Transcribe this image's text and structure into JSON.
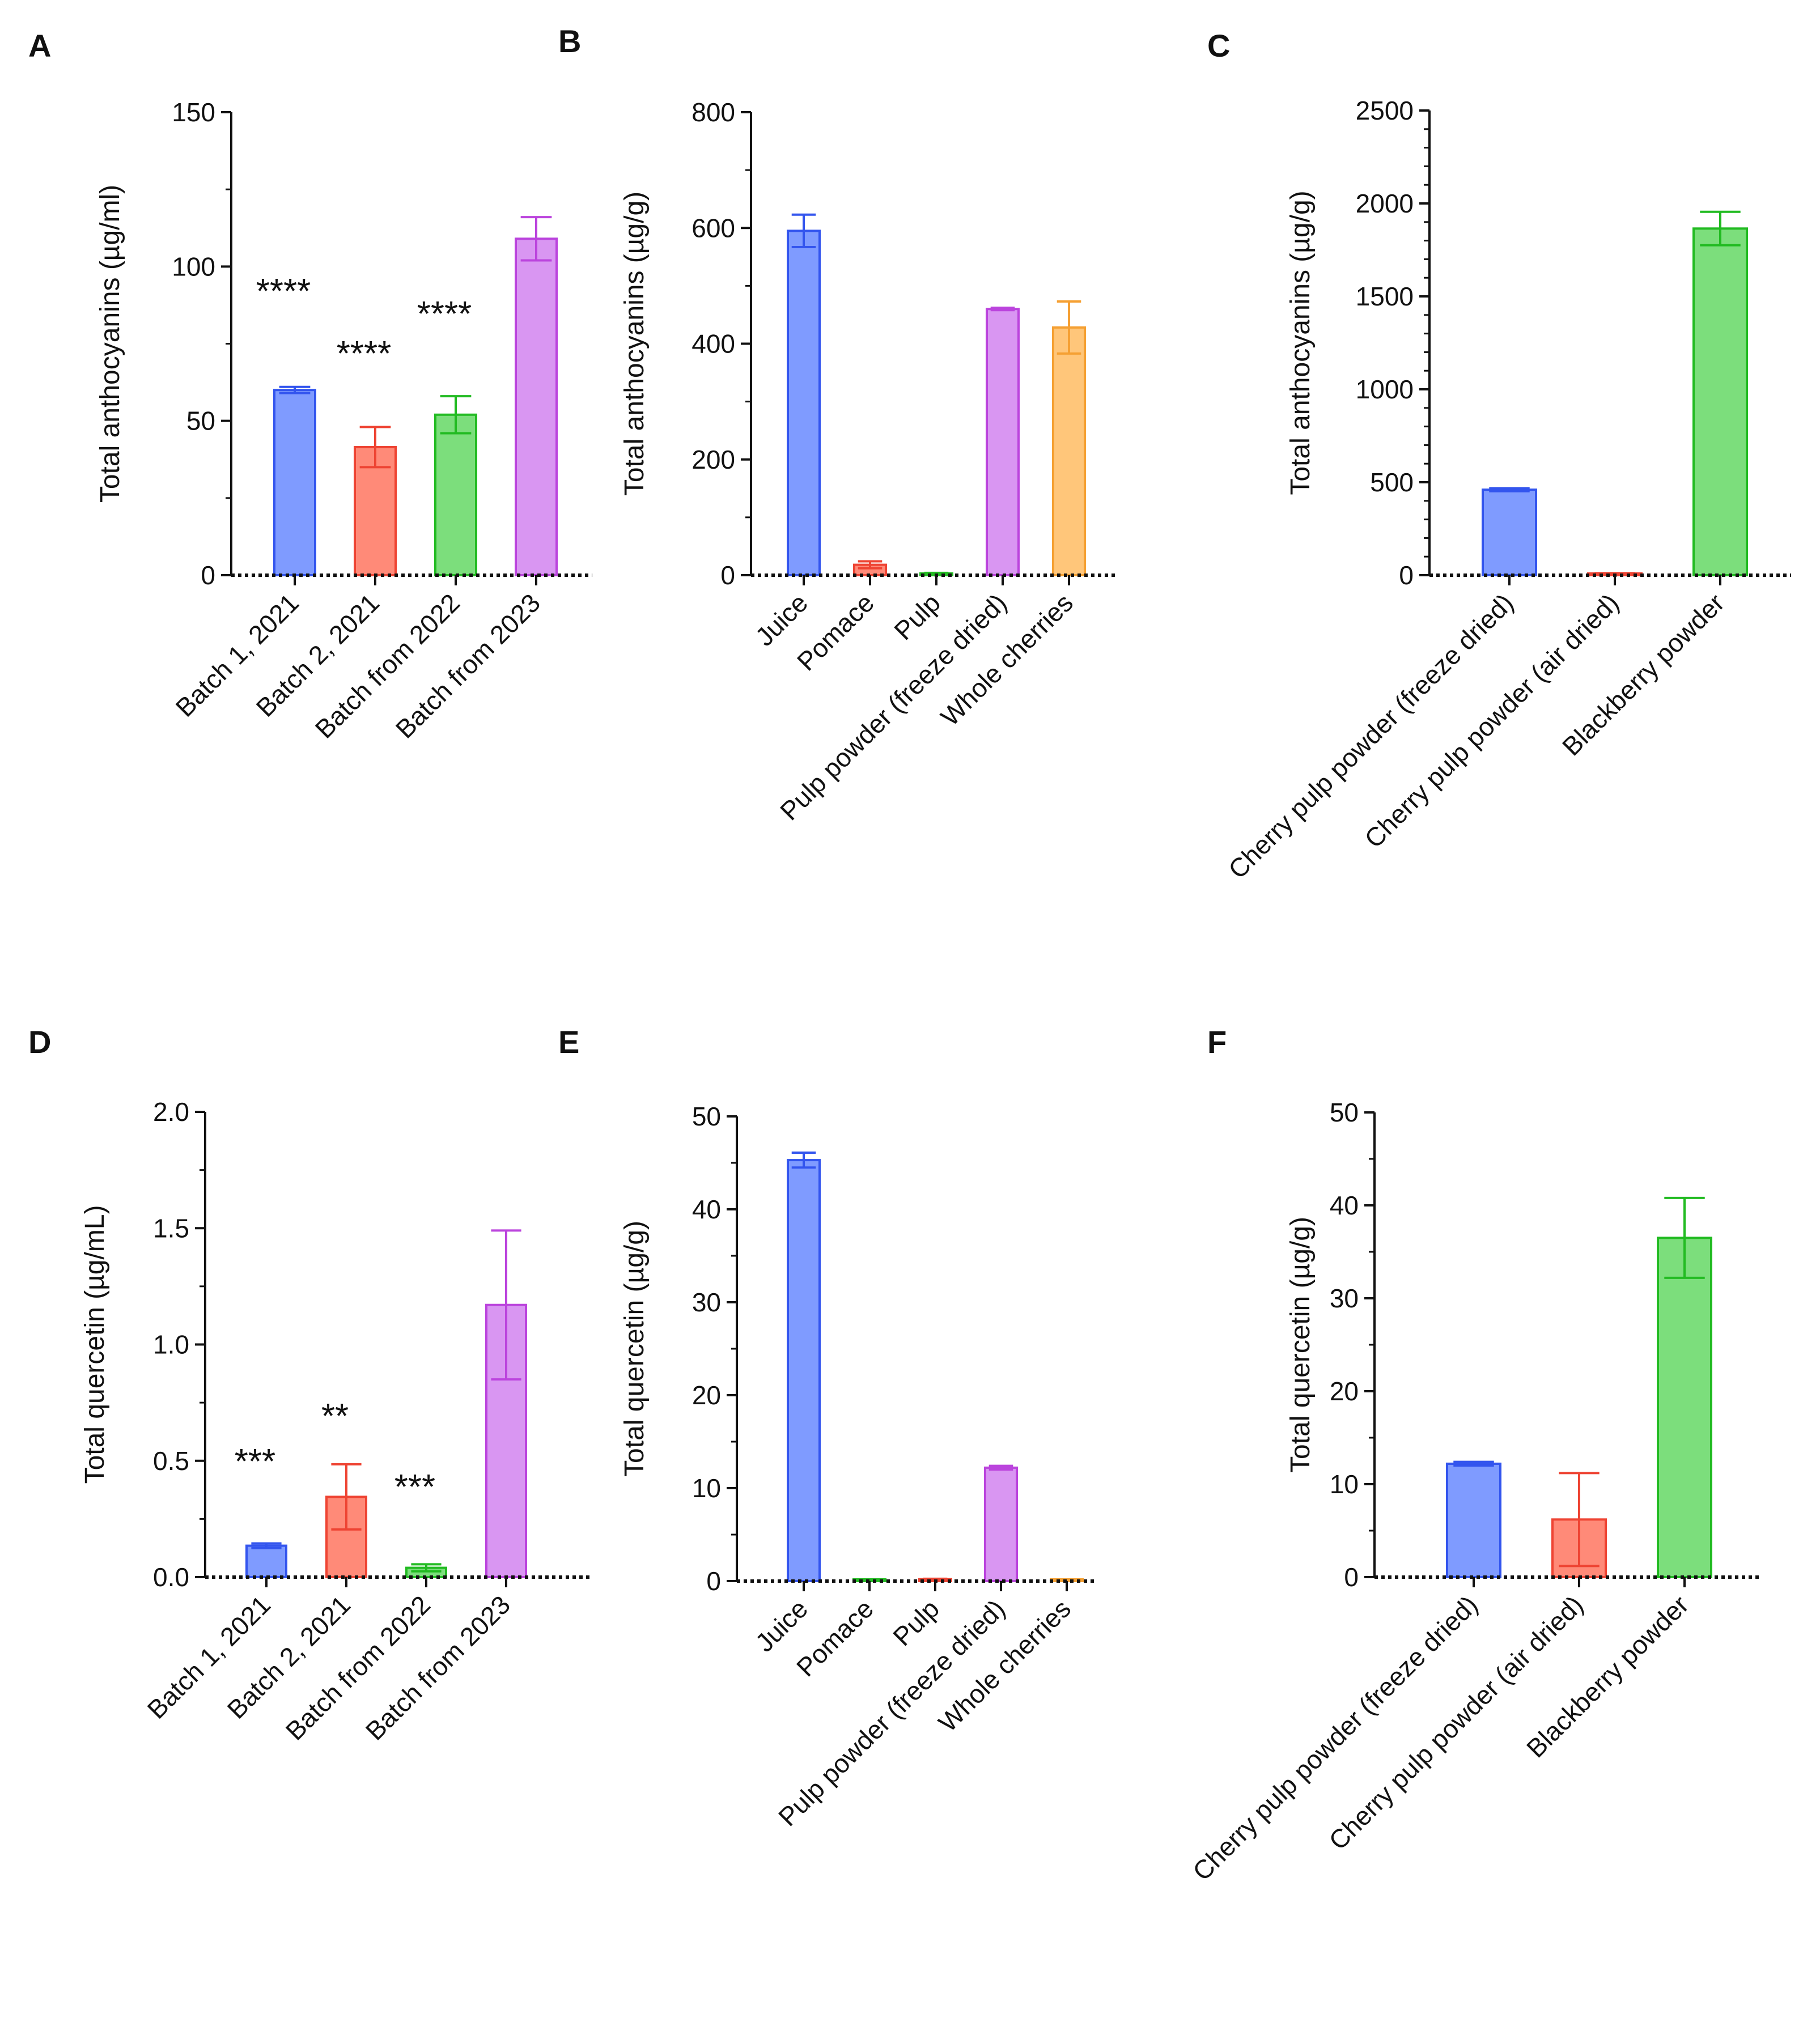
{
  "chart_data": [
    {
      "panel": "A",
      "type": "bar",
      "ylabel": "Total anthocyanins (µg/ml)",
      "ylim": [
        0,
        150
      ],
      "ytick_values": [
        0,
        50,
        100,
        150
      ],
      "ytick_labels": [
        "0",
        "50",
        "100",
        "150"
      ],
      "categories": [
        "Batch 1, 2021",
        "Batch 2, 2021",
        "Batch from 2022",
        "Batch from 2023"
      ],
      "values": [
        60,
        41.5,
        52,
        109
      ],
      "errors": [
        1,
        6.5,
        6,
        7
      ],
      "colors": [
        "#3355ee",
        "#ee4433",
        "#22bb22",
        "#bb44dd"
      ],
      "fills": [
        "#7f9bff",
        "#ff8a78",
        "#7cde7c",
        "#d996f2"
      ],
      "significance": [
        "****",
        "****",
        "****",
        ""
      ]
    },
    {
      "panel": "B",
      "type": "bar",
      "ylabel": "Total anthocyanins (µg/g)",
      "ylim": [
        0,
        800
      ],
      "ytick_values": [
        0,
        200,
        400,
        600,
        800
      ],
      "ytick_labels": [
        "0",
        "200",
        "400",
        "600",
        "800"
      ],
      "categories": [
        "Juice",
        "Pomace",
        "Pulp",
        "Pulp powder (freeze dried)",
        "Whole cherries"
      ],
      "values": [
        595,
        18,
        3,
        460,
        428
      ],
      "errors": [
        28,
        6,
        1,
        2,
        45
      ],
      "colors": [
        "#3355ee",
        "#ee4433",
        "#22bb22",
        "#bb44dd",
        "#f5a033"
      ],
      "fills": [
        "#7f9bff",
        "#ff8a78",
        "#7cde7c",
        "#d996f2",
        "#ffc67a"
      ],
      "significance": [
        "",
        "",
        "",
        "",
        ""
      ]
    },
    {
      "panel": "C",
      "type": "bar",
      "ylabel": "Total anthocyanins (µg/g)",
      "ylim": [
        0,
        2500
      ],
      "ytick_values": [
        0,
        500,
        1000,
        1500,
        2000,
        2500
      ],
      "ytick_labels": [
        "0",
        "500",
        "1000",
        "1500",
        "2000",
        "2500"
      ],
      "categories": [
        "Cherry pulp powder (freeze dried)",
        "Cherry pulp powder (air dried)",
        "Blackberry powder"
      ],
      "values": [
        460,
        8,
        1865
      ],
      "errors": [
        8,
        3,
        90
      ],
      "colors": [
        "#3355ee",
        "#ee4433",
        "#22bb22"
      ],
      "fills": [
        "#7f9bff",
        "#ff8a78",
        "#7cde7c"
      ],
      "significance": [
        "",
        "",
        ""
      ]
    },
    {
      "panel": "D",
      "type": "bar",
      "ylabel": "Total quercetin (µg/mL)",
      "ylim": [
        0,
        2
      ],
      "ytick_values": [
        0,
        0.5,
        1,
        1.5,
        2
      ],
      "ytick_labels": [
        "0.0",
        "0.5",
        "1.0",
        "1.5",
        "2.0"
      ],
      "categories": [
        "Batch 1, 2021",
        "Batch 2, 2021",
        "Batch from 2022",
        "Batch from 2023"
      ],
      "values": [
        0.135,
        0.345,
        0.04,
        1.17
      ],
      "errors": [
        0.01,
        0.14,
        0.015,
        0.32
      ],
      "colors": [
        "#3355ee",
        "#ee4433",
        "#22bb22",
        "#bb44dd"
      ],
      "fills": [
        "#7f9bff",
        "#ff8a78",
        "#7cde7c",
        "#d996f2"
      ],
      "significance": [
        "***",
        "**",
        "***",
        ""
      ]
    },
    {
      "panel": "E",
      "type": "bar",
      "ylabel": "Total quercetin (µg/g)",
      "ylim": [
        0,
        50
      ],
      "ytick_values": [
        0,
        10,
        20,
        30,
        40,
        50
      ],
      "ytick_labels": [
        "0",
        "10",
        "20",
        "30",
        "40",
        "50"
      ],
      "categories": [
        "Juice",
        "Pomace",
        "Pulp",
        "Pulp powder (freeze dried)",
        "Whole cherries"
      ],
      "values": [
        45.3,
        0.05,
        0.2,
        12.2,
        0.1
      ],
      "errors": [
        0.8,
        0.02,
        0.05,
        0.2,
        0.03
      ],
      "colors": [
        "#3355ee",
        "#22bb22",
        "#ee4433",
        "#bb44dd",
        "#f5a033"
      ],
      "fills": [
        "#7f9bff",
        "#7cde7c",
        "#ff8a78",
        "#d996f2",
        "#ffc67a"
      ],
      "significance": [
        "",
        "",
        "",
        "",
        ""
      ]
    },
    {
      "panel": "F",
      "type": "bar",
      "ylabel": "Total quercetin (µg/g)",
      "ylim": [
        0,
        50
      ],
      "ytick_values": [
        0,
        10,
        20,
        30,
        40,
        50
      ],
      "ytick_labels": [
        "0",
        "10",
        "20",
        "30",
        "40",
        "50"
      ],
      "categories": [
        "Cherry pulp powder (freeze dried)",
        "Cherry pulp powder (air dried)",
        "Blackberry powder"
      ],
      "values": [
        12.2,
        6.2,
        36.5
      ],
      "errors": [
        0.2,
        5,
        4.3
      ],
      "colors": [
        "#3355ee",
        "#ee4433",
        "#22bb22"
      ],
      "fills": [
        "#7f9bff",
        "#ff8a78",
        "#7cde7c"
      ],
      "significance": [
        "",
        "",
        ""
      ]
    }
  ]
}
